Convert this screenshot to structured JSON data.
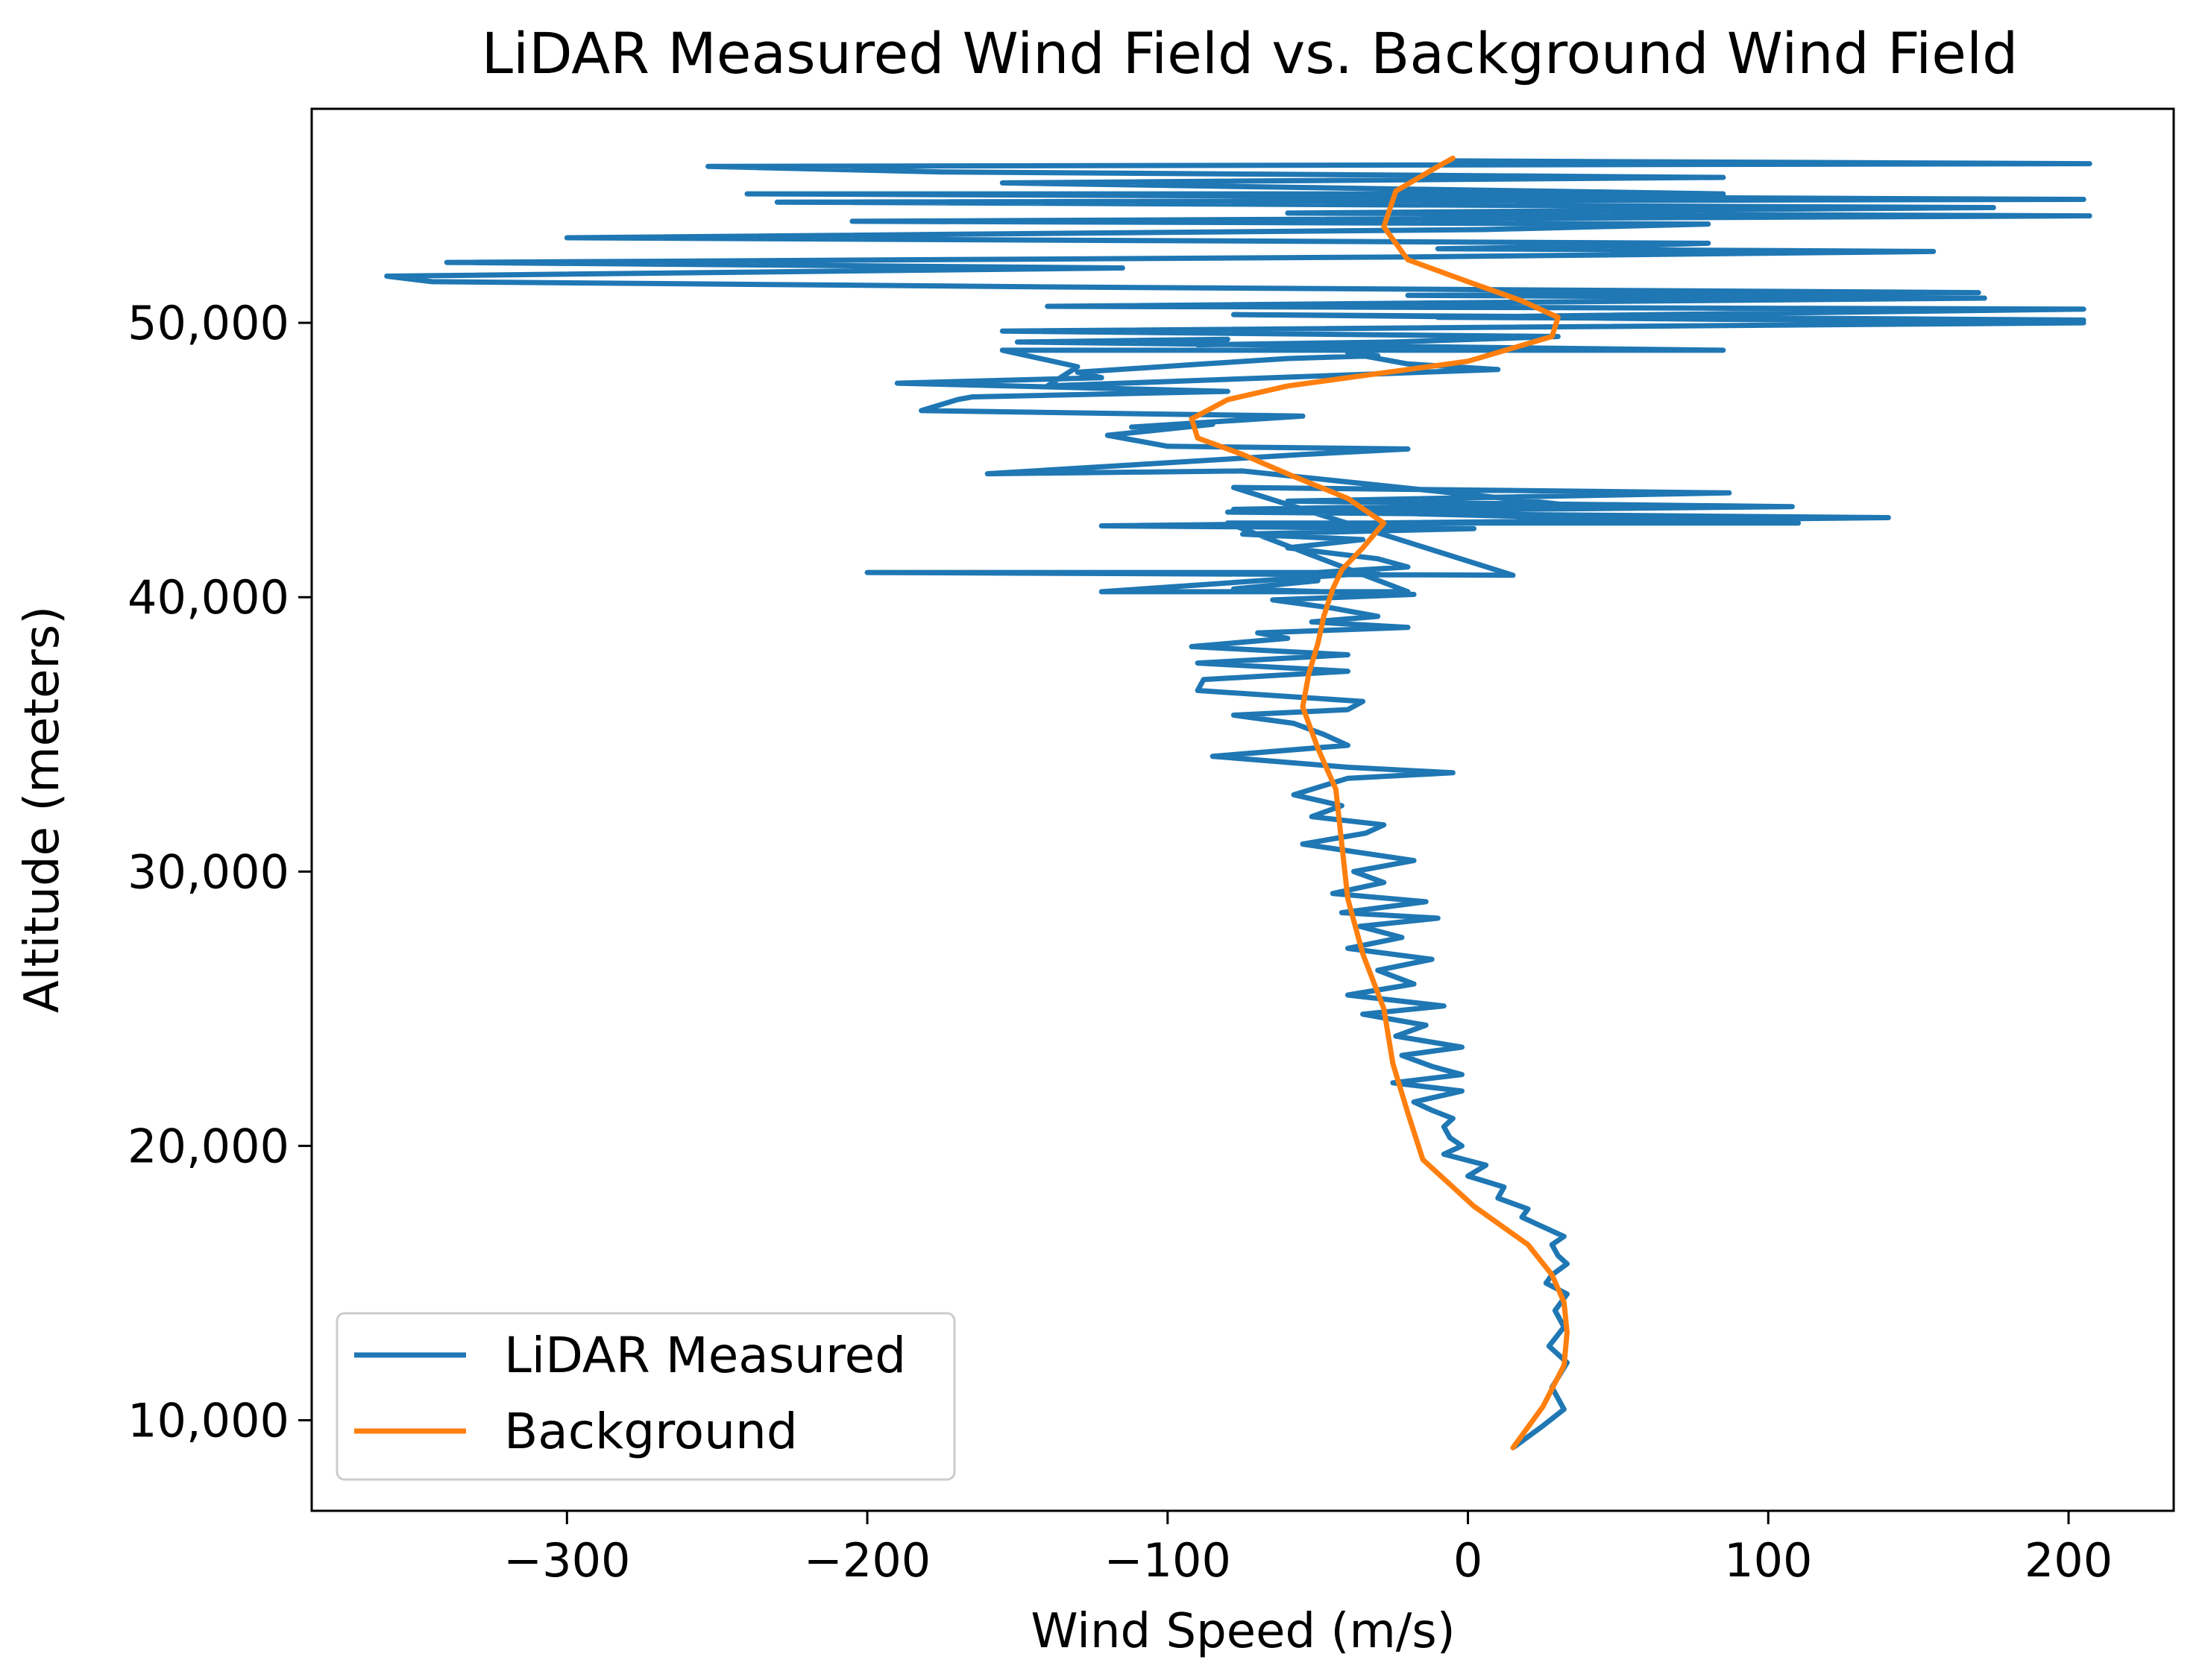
{
  "chart_data": {
    "type": "line",
    "title": "LiDAR Measured Wind Field vs. Background Wind Field",
    "xlabel": "Wind Speed (m/s)",
    "ylabel": "Altitude (meters)",
    "xlim": [
      -385,
      235
    ],
    "ylim": [
      6700,
      57800
    ],
    "grid": false,
    "legend_position": "lower-left",
    "x_ticks": [
      -300,
      -200,
      -100,
      0,
      100,
      200
    ],
    "x_tick_labels": [
      "−300",
      "−200",
      "−100",
      "0",
      "100",
      "200"
    ],
    "y_ticks": [
      10000,
      20000,
      30000,
      40000,
      50000
    ],
    "y_tick_labels": [
      "10,000",
      "20,000",
      "30,000",
      "40,000",
      "50,000"
    ],
    "series": [
      {
        "name": "LiDAR Measured",
        "color": "#1f77b4",
        "x": [
          15,
          25,
          32,
          28,
          33,
          27,
          32,
          29,
          33,
          26,
          28,
          33,
          30,
          28,
          32,
          24,
          18,
          20,
          10,
          12,
          0,
          6,
          -8,
          -2,
          -6,
          -8,
          -5,
          -12,
          -18,
          -2,
          -25,
          -2,
          -12,
          -22,
          -2,
          -24,
          -14,
          -35,
          -8,
          -40,
          -18,
          -30,
          -12,
          -40,
          -22,
          -36,
          -10,
          -42,
          -14,
          -45,
          -28,
          -38,
          -18,
          -55,
          -34,
          -28,
          -52,
          -42,
          -58,
          -40,
          -5,
          -40,
          -85,
          -40,
          -48,
          -58,
          -78,
          -40,
          -35,
          -90,
          -88,
          -40,
          -90,
          -40,
          -92,
          -60,
          -70,
          -20,
          -52,
          -30,
          -45,
          -65,
          -18,
          -78,
          -50,
          -50,
          -20,
          -30,
          -60,
          -35,
          -75,
          2,
          -122,
          140,
          -80,
          108,
          -60,
          87,
          -78,
          15,
          -200,
          -30,
          -122,
          -20,
          -80,
          110,
          -78,
          30,
          -75,
          -160,
          -55,
          -20,
          -100,
          -120,
          -85,
          -112,
          -55,
          -182,
          -170,
          -165,
          -80,
          -190,
          -122,
          -130,
          -88,
          -60,
          -30,
          -40,
          -20,
          10,
          -140,
          -130,
          -155,
          85,
          -150,
          -80,
          -90,
          -25,
          30,
          -155,
          205,
          -78,
          205,
          -10,
          205,
          -140,
          172,
          -20,
          170,
          -128,
          -345,
          -360,
          -115,
          -340,
          -20,
          155,
          -10,
          50,
          80,
          -300,
          5,
          80,
          -205,
          207,
          -60,
          175,
          -230,
          205,
          -240,
          85,
          -155,
          85,
          -175,
          -253,
          207,
          -5
        ],
        "y": [
          9000,
          9800,
          10400,
          11200,
          12100,
          12700,
          13400,
          14000,
          14600,
          15000,
          15300,
          15700,
          16000,
          16400,
          16700,
          17100,
          17400,
          17700,
          18100,
          18500,
          18900,
          19300,
          19700,
          20000,
          20300,
          20700,
          21000,
          21300,
          21600,
          22000,
          22300,
          22600,
          22900,
          23300,
          23600,
          24000,
          24400,
          24800,
          25100,
          25500,
          25900,
          26400,
          26800,
          27200,
          27600,
          28000,
          28300,
          28500,
          28900,
          29200,
          29600,
          30000,
          30400,
          31000,
          31400,
          31700,
          32000,
          32400,
          32800,
          33400,
          33600,
          33800,
          34200,
          34600,
          35000,
          35400,
          35700,
          35900,
          36200,
          36600,
          37000,
          37300,
          37600,
          37900,
          38200,
          38500,
          38700,
          38900,
          39100,
          39300,
          39600,
          39900,
          40100,
          40300,
          40600,
          40900,
          41100,
          41400,
          41800,
          42100,
          42300,
          42500,
          42600,
          42900,
          43100,
          43300,
          43500,
          43800,
          44000,
          40800,
          40900,
          40900,
          40200,
          40200,
          42700,
          42700,
          43200,
          43400,
          44600,
          44500,
          45200,
          45400,
          45500,
          45900,
          46300,
          46200,
          46600,
          46800,
          47200,
          47300,
          47500,
          47800,
          48000,
          48200,
          48500,
          48700,
          48800,
          48900,
          48500,
          48300,
          47700,
          48400,
          49000,
          49000,
          49300,
          49400,
          49200,
          49300,
          49500,
          49700,
          50000,
          50300,
          50100,
          50200,
          50500,
          50600,
          50900,
          51000,
          51100,
          51300,
          51500,
          51700,
          52000,
          52200,
          52400,
          52600,
          52700,
          52800,
          52900,
          53100,
          53400,
          53600,
          53700,
          53900,
          54000,
          54200,
          54400,
          54500,
          54700,
          54700,
          55100,
          55300,
          55500,
          55700,
          55800,
          55900
        ]
      },
      {
        "name": "Background",
        "color": "#ff7f0e",
        "x": [
          15,
          25,
          32,
          33,
          32,
          28,
          20,
          2,
          -15,
          -20,
          -25,
          -28,
          -35,
          -40,
          -42,
          -44,
          -50,
          -55,
          -53,
          -50,
          -48,
          -45,
          -42,
          -35,
          -28,
          -40,
          -58,
          -75,
          -90,
          -92,
          -80,
          -60,
          0,
          28,
          30,
          18,
          0,
          -20,
          -28,
          -24,
          -10,
          -5
        ],
        "y": [
          9000,
          10500,
          12000,
          13200,
          14300,
          15300,
          16400,
          17800,
          19500,
          21200,
          23000,
          25000,
          27000,
          29000,
          31000,
          33000,
          34500,
          36000,
          37200,
          38300,
          39300,
          40300,
          41000,
          41800,
          42700,
          43600,
          44400,
          45200,
          45800,
          46500,
          47200,
          47700,
          48600,
          49500,
          50200,
          50800,
          51500,
          52300,
          53500,
          54800,
          55700,
          56000
        ]
      }
    ]
  }
}
